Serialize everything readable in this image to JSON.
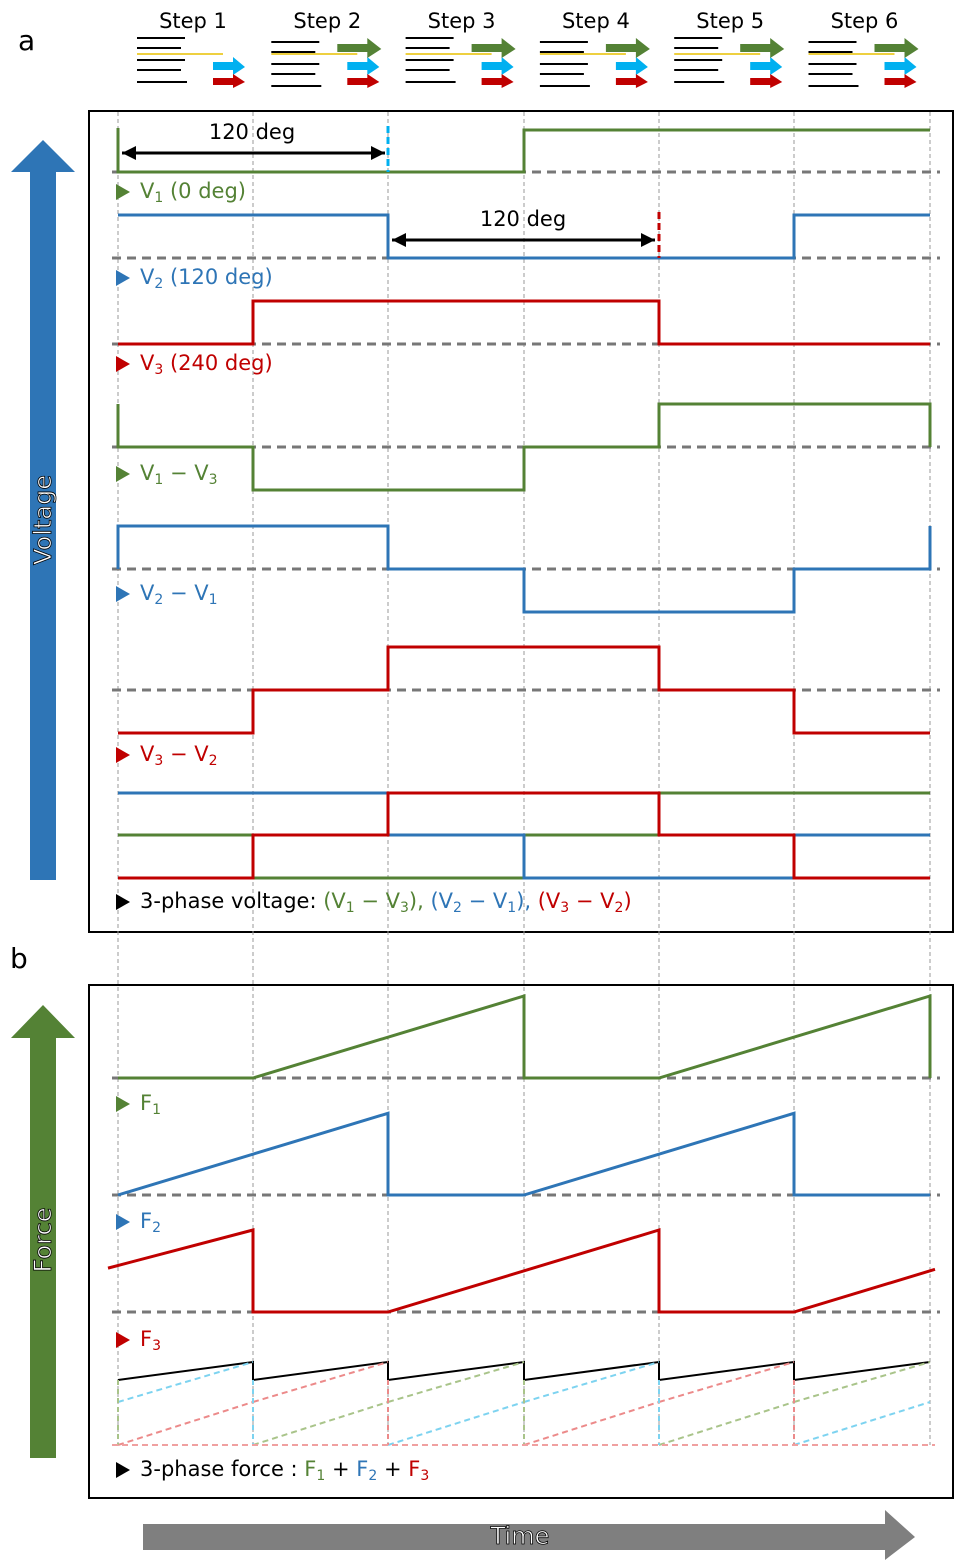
{
  "panel_labels": [
    "a",
    "b"
  ],
  "steps": [
    "Step 1",
    "Step 2",
    "Step 3",
    "Step 4",
    "Step 5",
    "Step 6"
  ],
  "axes": {
    "voltage": "Voltage",
    "force": "Force",
    "time": "Time"
  },
  "annotations": [
    "120 deg",
    "120 deg"
  ],
  "traces": [
    {
      "color": "#548235",
      "label": [
        {
          "t": "V"
        },
        {
          "sub": "1"
        },
        {
          "t": " (0 deg)"
        }
      ]
    },
    {
      "color": "#2e75b6",
      "label": [
        {
          "t": "V"
        },
        {
          "sub": "2"
        },
        {
          "t": " (120 deg)"
        }
      ]
    },
    {
      "color": "#c00000",
      "label": [
        {
          "t": "V"
        },
        {
          "sub": "3"
        },
        {
          "t": " (240 deg)"
        }
      ]
    },
    {
      "color": "#548235",
      "label": [
        {
          "t": "V"
        },
        {
          "sub": "1"
        },
        {
          "t": " − V"
        },
        {
          "sub": "3"
        }
      ]
    },
    {
      "color": "#2e75b6",
      "label": [
        {
          "t": "V"
        },
        {
          "sub": "2"
        },
        {
          "t": " − V"
        },
        {
          "sub": "1"
        }
      ]
    },
    {
      "color": "#c00000",
      "label": [
        {
          "t": "V"
        },
        {
          "sub": "3"
        },
        {
          "t": " − V"
        },
        {
          "sub": "2"
        }
      ]
    },
    {
      "color": "#548235",
      "label": [
        {
          "t": "F"
        },
        {
          "sub": "1"
        }
      ]
    },
    {
      "color": "#2e75b6",
      "label": [
        {
          "t": "F"
        },
        {
          "sub": "2"
        }
      ]
    },
    {
      "color": "#c00000",
      "label": [
        {
          "t": "F"
        },
        {
          "sub": "3"
        }
      ]
    }
  ],
  "legends": [
    {
      "color": "#000000",
      "label": [
        {
          "t": "3-phase voltage: "
        },
        {
          "t": "(V",
          "color": "#548235"
        },
        {
          "sub": "1",
          "color": "#548235"
        },
        {
          "t": " − V",
          "color": "#548235"
        },
        {
          "sub": "3",
          "color": "#548235"
        },
        {
          "t": "), ",
          "color": "#548235"
        },
        {
          "t": "(V",
          "color": "#2e75b6"
        },
        {
          "sub": "2",
          "color": "#2e75b6"
        },
        {
          "t": " − V",
          "color": "#2e75b6"
        },
        {
          "sub": "1",
          "color": "#2e75b6"
        },
        {
          "t": "), ",
          "color": "#2e75b6"
        },
        {
          "t": "(V",
          "color": "#c00000"
        },
        {
          "sub": "3",
          "color": "#c00000"
        },
        {
          "t": " − V",
          "color": "#c00000"
        },
        {
          "sub": "2",
          "color": "#c00000"
        },
        {
          "t": ")",
          "color": "#c00000"
        }
      ]
    },
    {
      "color": "#000000",
      "label": [
        {
          "t": "3-phase force : "
        },
        {
          "t": "F",
          "color": "#548235"
        },
        {
          "sub": "1",
          "color": "#548235"
        },
        {
          "t": " + "
        },
        {
          "t": "F",
          "color": "#2e75b6"
        },
        {
          "sub": "2",
          "color": "#2e75b6"
        },
        {
          "t": " + "
        },
        {
          "t": "F",
          "color": "#c00000"
        },
        {
          "sub": "3",
          "color": "#c00000"
        }
      ]
    }
  ]
}
